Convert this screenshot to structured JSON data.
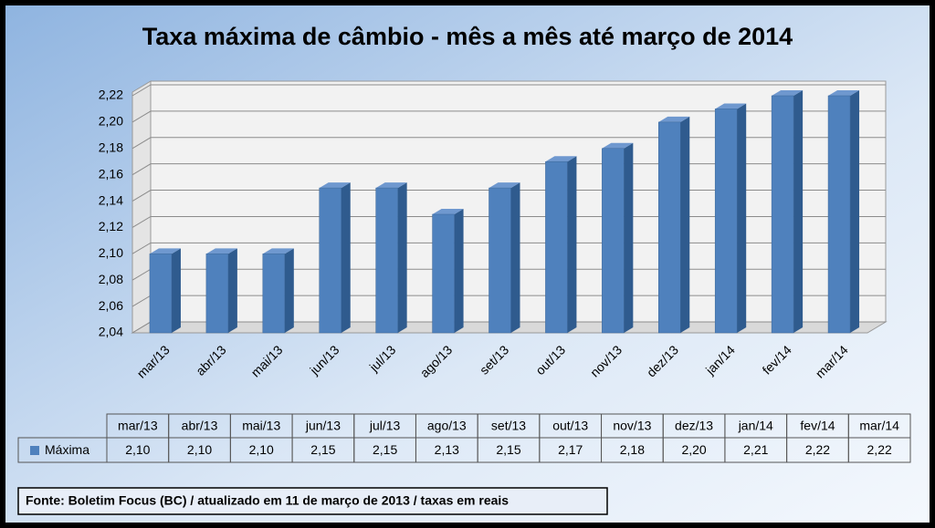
{
  "chart_data": {
    "type": "bar3d",
    "title": "Taxa máxima de câmbio - mês a mês até março de 2014",
    "categories": [
      "mar/13",
      "abr/13",
      "mai/13",
      "jun/13",
      "jul/13",
      "ago/13",
      "set/13",
      "out/13",
      "nov/13",
      "dez/13",
      "jan/14",
      "fev/14",
      "mar/14"
    ],
    "series": [
      {
        "name": "Máxima",
        "color": "#4f81bd",
        "values": [
          2.1,
          2.1,
          2.1,
          2.15,
          2.15,
          2.13,
          2.15,
          2.17,
          2.18,
          2.2,
          2.21,
          2.22,
          2.22
        ],
        "value_labels": [
          "2,10",
          "2,10",
          "2,10",
          "2,15",
          "2,15",
          "2,13",
          "2,15",
          "2,17",
          "2,18",
          "2,20",
          "2,21",
          "2,22",
          "2,22"
        ]
      }
    ],
    "ylim": [
      2.04,
      2.22
    ],
    "yticks": [
      {
        "value": 2.04,
        "label": "2,04"
      },
      {
        "value": 2.06,
        "label": "2,06"
      },
      {
        "value": 2.08,
        "label": "2,08"
      },
      {
        "value": 2.1,
        "label": "2,10"
      },
      {
        "value": 2.12,
        "label": "2,12"
      },
      {
        "value": 2.14,
        "label": "2,14"
      },
      {
        "value": 2.16,
        "label": "2,16"
      },
      {
        "value": 2.18,
        "label": "2,18"
      },
      {
        "value": 2.2,
        "label": "2,20"
      },
      {
        "value": 2.22,
        "label": "2,22"
      }
    ],
    "grid": true,
    "source": "Fonte: Boletim Focus (BC) / atualizado  em 11 de março de 2013 / taxas em reais"
  }
}
